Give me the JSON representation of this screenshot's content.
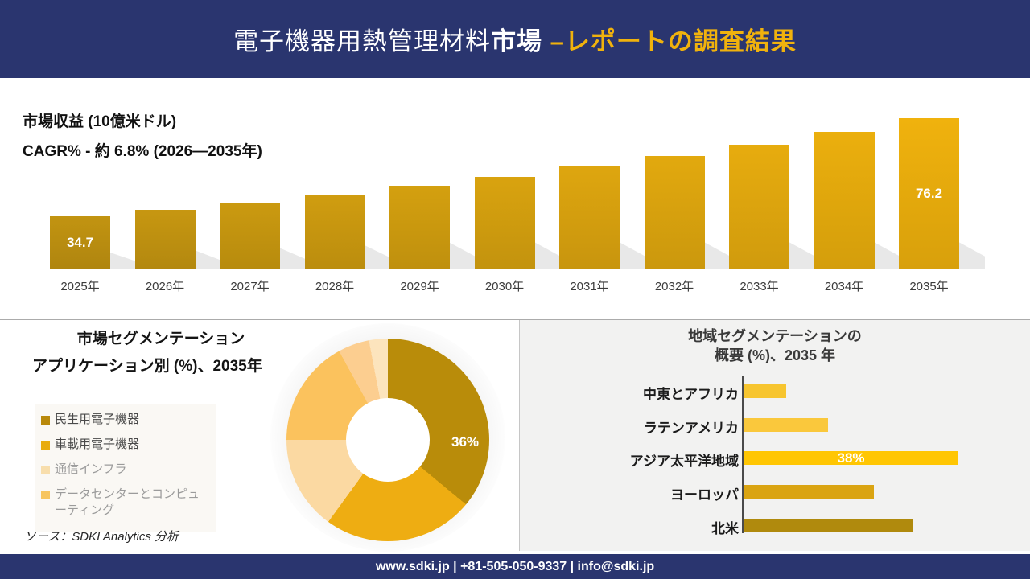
{
  "header": {
    "title_white_regular": "電子機器用熱管理材料",
    "title_white_bold": "市場",
    "title_gold": " –レポートの調査結果"
  },
  "revenue_section": {
    "unit_line": "市場収益 (10億米ドル)",
    "cagr_line": "CAGR% - 約 6.8% (2026―2035年)"
  },
  "chart_data": [
    {
      "type": "bar",
      "title": "市場収益 (10億米ドル)",
      "subtitle": "CAGR% - 約 6.8% (2026―2035年)",
      "categories": [
        "2025年",
        "2026年",
        "2027年",
        "2028年",
        "2029年",
        "2030年",
        "2031年",
        "2032年",
        "2033年",
        "2034年",
        "2035年"
      ],
      "values": [
        34.7,
        37.5,
        40.6,
        44.0,
        47.6,
        51.5,
        55.7,
        60.2,
        65.1,
        70.5,
        76.2
      ],
      "value_labels": [
        "34.7",
        null,
        null,
        null,
        null,
        null,
        null,
        null,
        null,
        null,
        "76.2"
      ],
      "ylim": [
        0,
        80
      ],
      "grid": false,
      "legend_position": "none",
      "bar_color_start": "#C29411",
      "bar_color_end": "#F0B20D"
    },
    {
      "type": "pie",
      "donut": true,
      "title": "市場セグメンテーション",
      "subtitle": "アプリケーション別 (%)、2035年",
      "segments": [
        {
          "label": "民生用電子機器",
          "value": 36,
          "color": "#B98C0A",
          "value_label": "36%"
        },
        {
          "label": "車載用電子機器",
          "value": 24,
          "color": "#EEAD12",
          "value_label": null
        },
        {
          "label": "通信インフラ",
          "value": 15,
          "color": "#FBD9A2",
          "value_label": null
        },
        {
          "label": "データセンターとコンピューティング",
          "value": 17,
          "color": "#FBC25D",
          "value_label": null
        },
        {
          "label": "",
          "value": 5,
          "color": "#FCCE90",
          "value_label": null
        },
        {
          "label": "",
          "value": 3,
          "color": "#FCE4BD",
          "value_label": null
        }
      ],
      "source_note": "ソース：SDKI Analytics 分析"
    },
    {
      "type": "bar",
      "orientation": "horizontal",
      "title_lines": [
        "地域セグメンテーションの",
        "概要 (%)、2035 年"
      ],
      "categories": [
        "中東とアフリカ",
        "ラテンアメリカ",
        "アジア太平洋地域",
        "ヨーロッパ",
        "北米"
      ],
      "values": [
        7.5,
        15,
        38,
        23,
        30
      ],
      "value_labels": [
        null,
        null,
        "38%",
        null,
        null
      ],
      "colors": [
        "#F7C52F",
        "#FAC83C",
        "#FFC603",
        "#DAA412",
        "#B08A0D"
      ],
      "grid": false,
      "xlim": [
        0,
        40
      ]
    }
  ],
  "segmentation_section": {
    "title": "市場セグメンテーション",
    "subtitle": "アプリケーション別 (%)、2035年",
    "legend": [
      {
        "label": "民生用電子機器",
        "color": "#B9890B",
        "muted": false
      },
      {
        "label": "車載用電子機器",
        "color": "#E8AB0F",
        "muted": false
      },
      {
        "label": "通信インフラ",
        "color": "#F8DEAC",
        "muted": true
      },
      {
        "label": "データセンターとコンピューティング",
        "color": "#F7C55F",
        "muted": true
      }
    ],
    "center_label": "36%",
    "source_note": "ソース：SDKI Analytics 分析"
  },
  "regional_section": {
    "title_line1": "地域セグメンテーションの",
    "title_line2": "概要 (%)、2035 年"
  },
  "footer": {
    "text": "www.sdki.jp | +81-505-050-9337 | info@sdki.jp"
  },
  "colors": {
    "brand_navy": "#2A356F",
    "accent_gold": "#F0B20D",
    "panel_gray": "#F2F2F1"
  }
}
